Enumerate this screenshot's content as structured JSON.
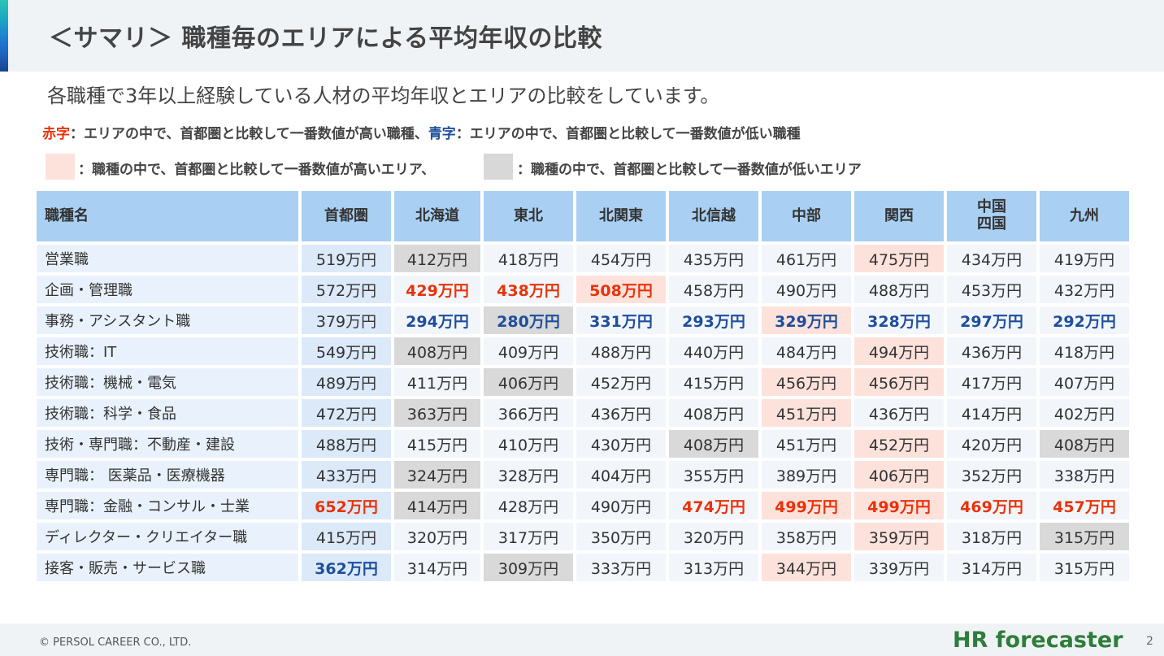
{
  "title": "＜サマリ＞ 職種毎のエリアによる平均年収の比較",
  "subtitle": "各職種で3年以上経験している人材の平均年収とエリアの比較をしています。",
  "legend": {
    "red_label": "赤字",
    "red_text": "：エリアの中で、首都圏と比較して一番数値が高い職種、",
    "blue_label": "青字",
    "blue_text": "：エリアの中で、首都圏と比較して一番数値が低い職種",
    "pink_text": "：職種の中で、首都圏と比較して一番数値が高いエリア、",
    "gray_text": "：職種の中で、首都圏と比較して一番数値が低いエリア"
  },
  "colors": {
    "red": "#e8330a",
    "blue": "#1f4e9c",
    "highlight_pink": "#fde2dc",
    "highlight_gray": "#d9d9d9",
    "header_blue": "#a9cff2"
  },
  "table": {
    "headers": [
      "職種名",
      "首都圏",
      "北海道",
      "東北",
      "北関東",
      "北信越",
      "中部",
      "関西",
      "中国\n四国",
      "九州"
    ],
    "rows": [
      {
        "name": "営業職",
        "values": [
          "519万円",
          "412万円",
          "418万円",
          "454万円",
          "435万円",
          "461万円",
          "475万円",
          "434万円",
          "419万円"
        ],
        "styles": [
          "",
          "low",
          "",
          "",
          "",
          "",
          "high",
          "",
          ""
        ]
      },
      {
        "name": "企画・管理職",
        "values": [
          "572万円",
          "429万円",
          "438万円",
          "508万円",
          "458万円",
          "490万円",
          "488万円",
          "453万円",
          "432万円"
        ],
        "styles": [
          "",
          "red",
          "red",
          "red high",
          "",
          "",
          "",
          "",
          ""
        ]
      },
      {
        "name": "事務・アシスタント職",
        "values": [
          "379万円",
          "294万円",
          "280万円",
          "331万円",
          "293万円",
          "329万円",
          "328万円",
          "297万円",
          "292万円"
        ],
        "styles": [
          "",
          "blue",
          "blue low",
          "blue",
          "blue",
          "blue high",
          "blue",
          "blue",
          "blue"
        ]
      },
      {
        "name": "技術職：IT",
        "values": [
          "549万円",
          "408万円",
          "409万円",
          "488万円",
          "440万円",
          "484万円",
          "494万円",
          "436万円",
          "418万円"
        ],
        "styles": [
          "",
          "low",
          "",
          "",
          "",
          "",
          "high",
          "",
          ""
        ]
      },
      {
        "name": "技術職：機械・電気",
        "values": [
          "489万円",
          "411万円",
          "406万円",
          "452万円",
          "415万円",
          "456万円",
          "456万円",
          "417万円",
          "407万円"
        ],
        "styles": [
          "",
          "",
          "low",
          "",
          "",
          "high",
          "high",
          "",
          ""
        ]
      },
      {
        "name": "技術職：科学・食品",
        "values": [
          "472万円",
          "363万円",
          "366万円",
          "436万円",
          "408万円",
          "451万円",
          "436万円",
          "414万円",
          "402万円"
        ],
        "styles": [
          "",
          "low",
          "",
          "",
          "",
          "high",
          "",
          "",
          ""
        ]
      },
      {
        "name": "技術・専門職：不動産・建設",
        "values": [
          "488万円",
          "415万円",
          "410万円",
          "430万円",
          "408万円",
          "451万円",
          "452万円",
          "420万円",
          "408万円"
        ],
        "styles": [
          "",
          "",
          "",
          "",
          "low",
          "",
          "high",
          "",
          "low"
        ]
      },
      {
        "name": "専門職： 医薬品・医療機器",
        "values": [
          "433万円",
          "324万円",
          "328万円",
          "404万円",
          "355万円",
          "389万円",
          "406万円",
          "352万円",
          "338万円"
        ],
        "styles": [
          "",
          "low",
          "",
          "",
          "",
          "",
          "high",
          "",
          ""
        ]
      },
      {
        "name": "専門職：金融・コンサル・士業",
        "values": [
          "652万円",
          "414万円",
          "428万円",
          "490万円",
          "474万円",
          "499万円",
          "499万円",
          "469万円",
          "457万円"
        ],
        "styles": [
          "red",
          "low",
          "",
          "",
          "red",
          "red high",
          "red high",
          "red",
          "red"
        ]
      },
      {
        "name": "ディレクター・クリエイター職",
        "values": [
          "415万円",
          "320万円",
          "317万円",
          "350万円",
          "320万円",
          "358万円",
          "359万円",
          "318万円",
          "315万円"
        ],
        "styles": [
          "",
          "",
          "",
          "",
          "",
          "",
          "high",
          "",
          "low"
        ]
      },
      {
        "name": "接客・販売・サービス職",
        "values": [
          "362万円",
          "314万円",
          "309万円",
          "333万円",
          "313万円",
          "344万円",
          "339万円",
          "314万円",
          "315万円"
        ],
        "styles": [
          "blue",
          "",
          "low",
          "",
          "",
          "high",
          "",
          "",
          ""
        ]
      }
    ]
  },
  "footer": {
    "copyright": "© PERSOL CAREER CO., LTD.",
    "brand": "HR forecaster",
    "page": "2"
  }
}
